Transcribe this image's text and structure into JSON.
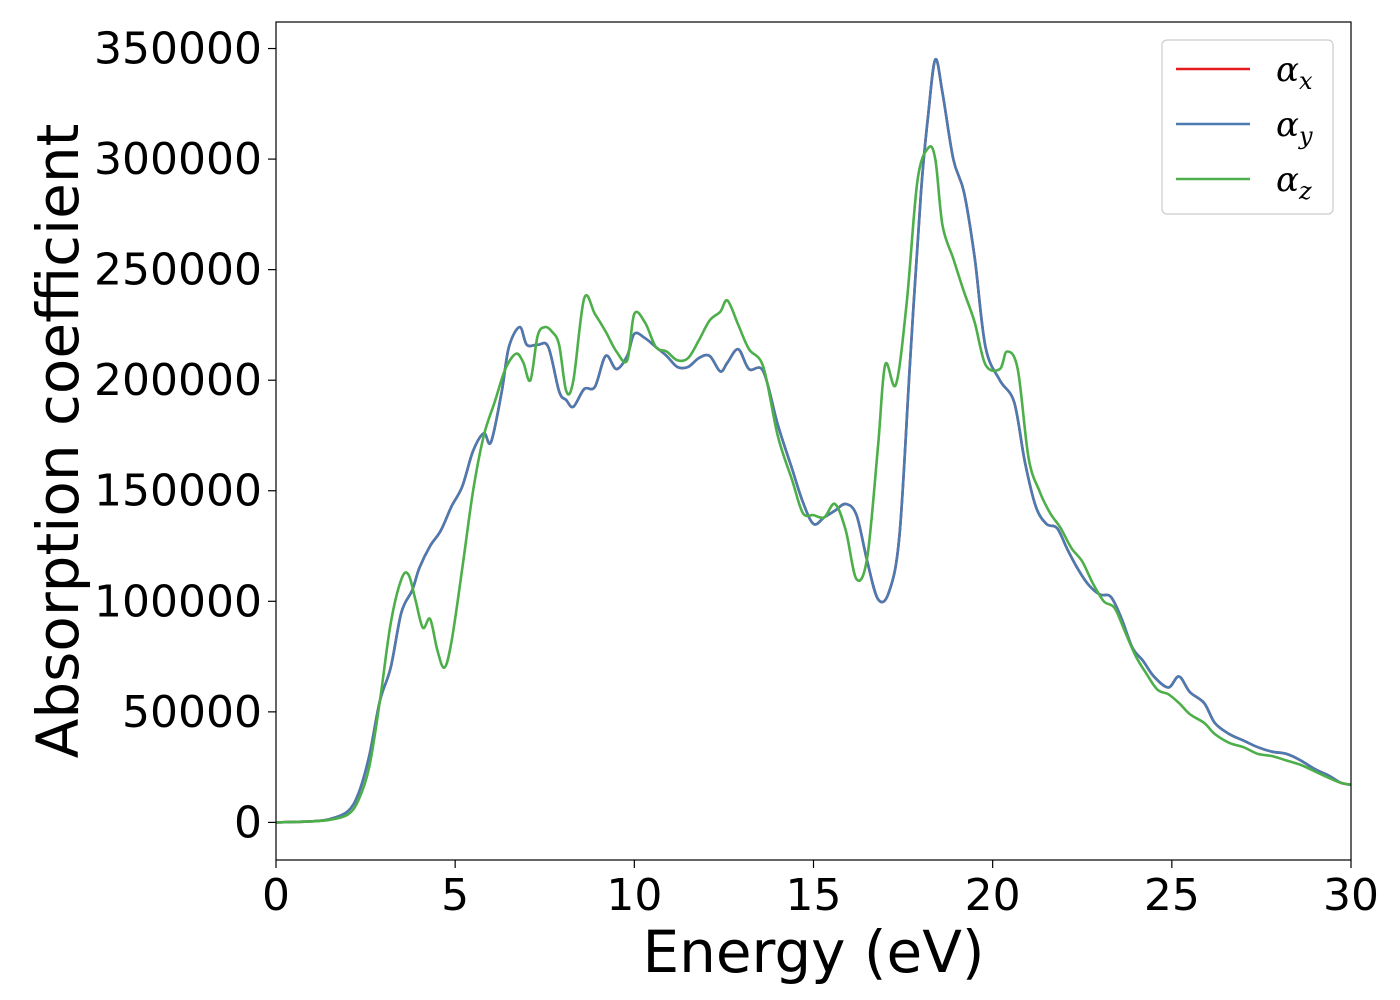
{
  "chart_data": {
    "type": "line",
    "title": "",
    "xlabel": "Energy (eV)",
    "ylabel": "Absorption coefficient",
    "xlim": [
      0,
      30
    ],
    "ylim": [
      -17000,
      362000
    ],
    "xticks": [
      0,
      5,
      10,
      15,
      20,
      25,
      30
    ],
    "xtick_labels": [
      "0",
      "5",
      "10",
      "15",
      "20",
      "25",
      "30"
    ],
    "yticks": [
      0,
      50000,
      100000,
      150000,
      200000,
      250000,
      300000,
      350000
    ],
    "ytick_labels": [
      "0",
      "50000",
      "100000",
      "150000",
      "200000",
      "250000",
      "300000",
      "350000"
    ],
    "grid": false,
    "legend_position": "top-right",
    "series": [
      {
        "name": "α",
        "subscript": "x",
        "color": "#e41a1c",
        "x": [
          0,
          1,
          1.5,
          2,
          2.3,
          2.6,
          2.9,
          3.2,
          3.5,
          3.8,
          4.0,
          4.3,
          4.6,
          4.9,
          5.2,
          5.5,
          5.8,
          6.0,
          6.3,
          6.5,
          6.8,
          7.0,
          7.3,
          7.6,
          7.9,
          8.1,
          8.3,
          8.6,
          8.9,
          9.2,
          9.5,
          9.8,
          10.0,
          10.3,
          10.6,
          10.9,
          11.2,
          11.5,
          11.8,
          12.1,
          12.4,
          12.6,
          12.9,
          13.2,
          13.6,
          14.0,
          14.4,
          14.7,
          15.0,
          15.3,
          15.6,
          15.9,
          16.2,
          16.5,
          16.8,
          17.1,
          17.4,
          17.7,
          18.0,
          18.2,
          18.4,
          18.6,
          18.9,
          19.2,
          19.5,
          19.8,
          20.2,
          20.6,
          20.9,
          21.2,
          21.5,
          21.8,
          22.1,
          22.4,
          22.7,
          23.0,
          23.3,
          23.6,
          23.9,
          24.2,
          24.5,
          24.9,
          25.2,
          25.5,
          25.9,
          26.2,
          26.6,
          27.0,
          27.4,
          27.8,
          28.2,
          28.6,
          29.0,
          29.4,
          29.7,
          30.0
        ],
        "y": [
          0,
          500,
          1500,
          5000,
          13000,
          30000,
          55000,
          70000,
          95000,
          105000,
          115000,
          125000,
          132000,
          143000,
          152000,
          168000,
          176000,
          172000,
          195000,
          215000,
          224000,
          216000,
          216000,
          215000,
          195000,
          191000,
          188000,
          196000,
          197000,
          211000,
          205000,
          211000,
          221000,
          219000,
          215000,
          211000,
          206000,
          206000,
          210000,
          211000,
          204000,
          208000,
          214000,
          205000,
          204000,
          180000,
          160000,
          145000,
          135000,
          138000,
          141000,
          144000,
          139000,
          118000,
          101000,
          104000,
          130000,
          210000,
          285000,
          320000,
          345000,
          330000,
          300000,
          285000,
          255000,
          215000,
          200000,
          190000,
          163000,
          143000,
          135000,
          133000,
          123000,
          114000,
          107000,
          103000,
          102000,
          92000,
          79000,
          73000,
          66000,
          61000,
          66000,
          59000,
          54000,
          45000,
          40000,
          37000,
          34000,
          32000,
          31000,
          28000,
          24000,
          21000,
          18000,
          17000
        ]
      },
      {
        "name": "α",
        "subscript": "y",
        "color": "#4a7bb1",
        "x": [
          0,
          1,
          1.5,
          2,
          2.3,
          2.6,
          2.9,
          3.2,
          3.5,
          3.8,
          4.0,
          4.3,
          4.6,
          4.9,
          5.2,
          5.5,
          5.8,
          6.0,
          6.3,
          6.5,
          6.8,
          7.0,
          7.3,
          7.6,
          7.9,
          8.1,
          8.3,
          8.6,
          8.9,
          9.2,
          9.5,
          9.8,
          10.0,
          10.3,
          10.6,
          10.9,
          11.2,
          11.5,
          11.8,
          12.1,
          12.4,
          12.6,
          12.9,
          13.2,
          13.6,
          14.0,
          14.4,
          14.7,
          15.0,
          15.3,
          15.6,
          15.9,
          16.2,
          16.5,
          16.8,
          17.1,
          17.4,
          17.7,
          18.0,
          18.2,
          18.4,
          18.6,
          18.9,
          19.2,
          19.5,
          19.8,
          20.2,
          20.6,
          20.9,
          21.2,
          21.5,
          21.8,
          22.1,
          22.4,
          22.7,
          23.0,
          23.3,
          23.6,
          23.9,
          24.2,
          24.5,
          24.9,
          25.2,
          25.5,
          25.9,
          26.2,
          26.6,
          27.0,
          27.4,
          27.8,
          28.2,
          28.6,
          29.0,
          29.4,
          29.7,
          30.0
        ],
        "y": [
          0,
          500,
          1500,
          5000,
          13000,
          30000,
          55000,
          70000,
          95000,
          105000,
          115000,
          125000,
          132000,
          143000,
          152000,
          168000,
          176000,
          172000,
          195000,
          215000,
          224000,
          216000,
          216000,
          215000,
          195000,
          191000,
          188000,
          196000,
          197000,
          211000,
          205000,
          211000,
          221000,
          219000,
          215000,
          211000,
          206000,
          206000,
          210000,
          211000,
          204000,
          208000,
          214000,
          205000,
          204000,
          180000,
          160000,
          145000,
          135000,
          138000,
          141000,
          144000,
          139000,
          118000,
          101000,
          104000,
          130000,
          210000,
          285000,
          320000,
          345000,
          330000,
          300000,
          285000,
          255000,
          215000,
          200000,
          190000,
          163000,
          143000,
          135000,
          133000,
          123000,
          114000,
          107000,
          103000,
          102000,
          92000,
          79000,
          73000,
          66000,
          61000,
          66000,
          59000,
          54000,
          45000,
          40000,
          37000,
          34000,
          32000,
          31000,
          28000,
          24000,
          21000,
          18000,
          17000
        ]
      },
      {
        "name": "α",
        "subscript": "z",
        "color": "#4daf4a",
        "x": [
          0,
          1,
          1.5,
          2,
          2.3,
          2.6,
          2.9,
          3.2,
          3.5,
          3.7,
          3.9,
          4.1,
          4.3,
          4.5,
          4.7,
          4.9,
          5.2,
          5.5,
          5.8,
          6.1,
          6.4,
          6.7,
          6.9,
          7.1,
          7.3,
          7.5,
          7.7,
          7.9,
          8.1,
          8.3,
          8.6,
          8.9,
          9.2,
          9.5,
          9.8,
          10.0,
          10.3,
          10.6,
          10.9,
          11.2,
          11.5,
          11.8,
          12.1,
          12.4,
          12.6,
          12.9,
          13.2,
          13.6,
          14.0,
          14.4,
          14.7,
          15.0,
          15.3,
          15.6,
          15.9,
          16.2,
          16.5,
          16.8,
          17.0,
          17.3,
          17.6,
          17.9,
          18.2,
          18.4,
          18.6,
          18.9,
          19.2,
          19.5,
          19.8,
          20.2,
          20.4,
          20.7,
          21.0,
          21.3,
          21.6,
          21.9,
          22.2,
          22.5,
          22.8,
          23.1,
          23.4,
          23.7,
          24.0,
          24.3,
          24.6,
          24.9,
          25.2,
          25.5,
          25.9,
          26.2,
          26.6,
          27.0,
          27.4,
          27.8,
          28.2,
          28.6,
          29.0,
          29.4,
          29.7,
          30.0
        ],
        "y": [
          0,
          500,
          1200,
          3500,
          10000,
          25000,
          55000,
          90000,
          110000,
          112000,
          100000,
          88000,
          92000,
          78000,
          70000,
          82000,
          115000,
          150000,
          175000,
          190000,
          205000,
          212000,
          208000,
          200000,
          220000,
          224000,
          222000,
          216000,
          195000,
          200000,
          237000,
          230000,
          222000,
          213000,
          209000,
          230000,
          226000,
          215000,
          213000,
          209000,
          210000,
          218000,
          227000,
          231000,
          236000,
          225000,
          214000,
          206000,
          175000,
          155000,
          140000,
          139000,
          138000,
          144000,
          132000,
          110000,
          120000,
          170000,
          207000,
          198000,
          235000,
          290000,
          305000,
          300000,
          270000,
          255000,
          240000,
          226000,
          207000,
          205000,
          213000,
          205000,
          165000,
          150000,
          140000,
          133000,
          124000,
          118000,
          108000,
          100000,
          97000,
          86000,
          75000,
          67000,
          60000,
          58000,
          54000,
          49000,
          45000,
          40000,
          36000,
          34000,
          31000,
          30000,
          28000,
          26000,
          23000,
          20000,
          18000,
          17000
        ]
      }
    ]
  }
}
